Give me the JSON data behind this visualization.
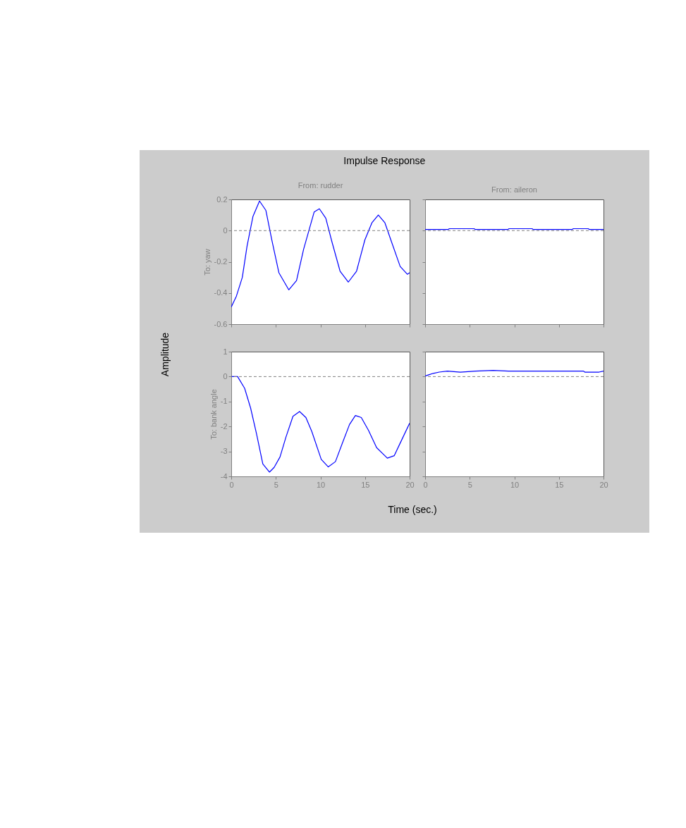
{
  "chart_data": [
    {
      "type": "line",
      "title": "Impulse Response",
      "subtitle": "From: rudder",
      "ylabel": "To: yaw",
      "annotations": [
        "Amplitude",
        "Time (sec.)"
      ],
      "tick_labels": "y",
      "xlim": [
        0,
        20
      ],
      "xticks": [
        0,
        5,
        10,
        15,
        20
      ],
      "ylim": [
        -0.6,
        0.2
      ],
      "yticks": [
        -0.6,
        -0.4,
        -0.2,
        0,
        0.2
      ],
      "ref_lines": [
        {
          "axis": "y",
          "value": 0,
          "color": "#808080",
          "line_style": "dashed"
        }
      ],
      "series": [
        {
          "color": "#0000ff",
          "x": [
            0,
            0.58,
            1.24,
            1.77,
            2.43,
            3.17,
            3.88,
            4.55,
            5.34,
            6.45,
            7.32,
            8.11,
            9.3,
            9.88,
            10.6,
            11.28,
            12.2,
            13.13,
            14.05,
            14.98,
            15.77,
            16.49,
            17.23,
            18.02,
            18.94,
            19.74,
            20
          ],
          "values": [
            -0.49,
            -0.42,
            -0.3,
            -0.1,
            0.09,
            0.19,
            0.13,
            -0.06,
            -0.27,
            -0.38,
            -0.32,
            -0.12,
            0.12,
            0.14,
            0.08,
            -0.07,
            -0.26,
            -0.33,
            -0.26,
            -0.06,
            0.05,
            0.1,
            0.05,
            -0.08,
            -0.23,
            -0.28,
            -0.27
          ]
        }
      ]
    },
    {
      "type": "line",
      "subtitle": "From: aileron",
      "tick_labels": false,
      "xlim": [
        0,
        20
      ],
      "xticks": [
        0,
        5,
        10,
        15,
        20
      ],
      "ylim": [
        -0.6,
        0.2
      ],
      "yticks": [
        -0.6,
        -0.4,
        -0.2,
        0,
        0.2
      ],
      "ref_lines": [
        {
          "axis": "y",
          "value": 0,
          "color": "#808080",
          "line_style": "dashed"
        }
      ],
      "series": [
        {
          "color": "#0000ff",
          "x": [
            0,
            2.6,
            2.7,
            5.5,
            5.6,
            7.4,
            8,
            8.5,
            9.3,
            9.4,
            12,
            12.1,
            16.5,
            16.6,
            18.3,
            18.4,
            20
          ],
          "values": [
            0.0075,
            0.0075,
            0.0125,
            0.0125,
            0.0075,
            0.0075,
            0.0075,
            0.0075,
            0.0075,
            0.0125,
            0.0125,
            0.0075,
            0.0075,
            0.0125,
            0.0125,
            0.0075,
            0.0075
          ]
        }
      ]
    },
    {
      "type": "line",
      "ylabel": "To: bank angle",
      "xlim": [
        0,
        20
      ],
      "xticks": [
        0,
        5,
        10,
        15,
        20
      ],
      "ylim": [
        -4,
        1
      ],
      "yticks": [
        -4,
        -3,
        -2,
        -1,
        0,
        1
      ],
      "ref_lines": [
        {
          "axis": "y",
          "value": 0,
          "color": "#808080",
          "line_style": "dashed"
        }
      ],
      "series": [
        {
          "color": "#0000ff",
          "x": [
            0,
            0.71,
            1.5,
            2.17,
            2.83,
            3.54,
            4.28,
            4.81,
            5.47,
            6.13,
            6.92,
            7.66,
            8.37,
            9.03,
            10.09,
            10.88,
            11.68,
            12.47,
            13.26,
            13.92,
            14.58,
            15.38,
            16.3,
            17.5,
            18.28,
            19.07,
            20
          ],
          "values": [
            0,
            0,
            -0.47,
            -1.26,
            -2.29,
            -3.5,
            -3.83,
            -3.64,
            -3.22,
            -2.43,
            -1.59,
            -1.4,
            -1.64,
            -2.2,
            -3.32,
            -3.62,
            -3.41,
            -2.66,
            -1.92,
            -1.56,
            -1.64,
            -2.15,
            -2.85,
            -3.27,
            -3.17,
            -2.57,
            -1.87
          ]
        }
      ]
    },
    {
      "type": "line",
      "tick_labels": "x",
      "xlim": [
        0,
        20
      ],
      "xticks": [
        0,
        5,
        10,
        15,
        20
      ],
      "ylim": [
        -4,
        1
      ],
      "yticks": [
        -4,
        -3,
        -2,
        -1,
        0,
        1
      ],
      "ref_lines": [
        {
          "axis": "y",
          "value": 0,
          "color": "#808080",
          "line_style": "dashed"
        }
      ],
      "series": [
        {
          "color": "#0000ff",
          "x": [
            0,
            0.4,
            0.92,
            1.58,
            2.5,
            3.95,
            5.66,
            7.63,
            9.34,
            17.76,
            17.9,
            19.5,
            20
          ],
          "values": [
            0.02,
            0.07,
            0.13,
            0.18,
            0.22,
            0.18,
            0.22,
            0.25,
            0.22,
            0.22,
            0.18,
            0.18,
            0.22
          ]
        }
      ]
    }
  ]
}
